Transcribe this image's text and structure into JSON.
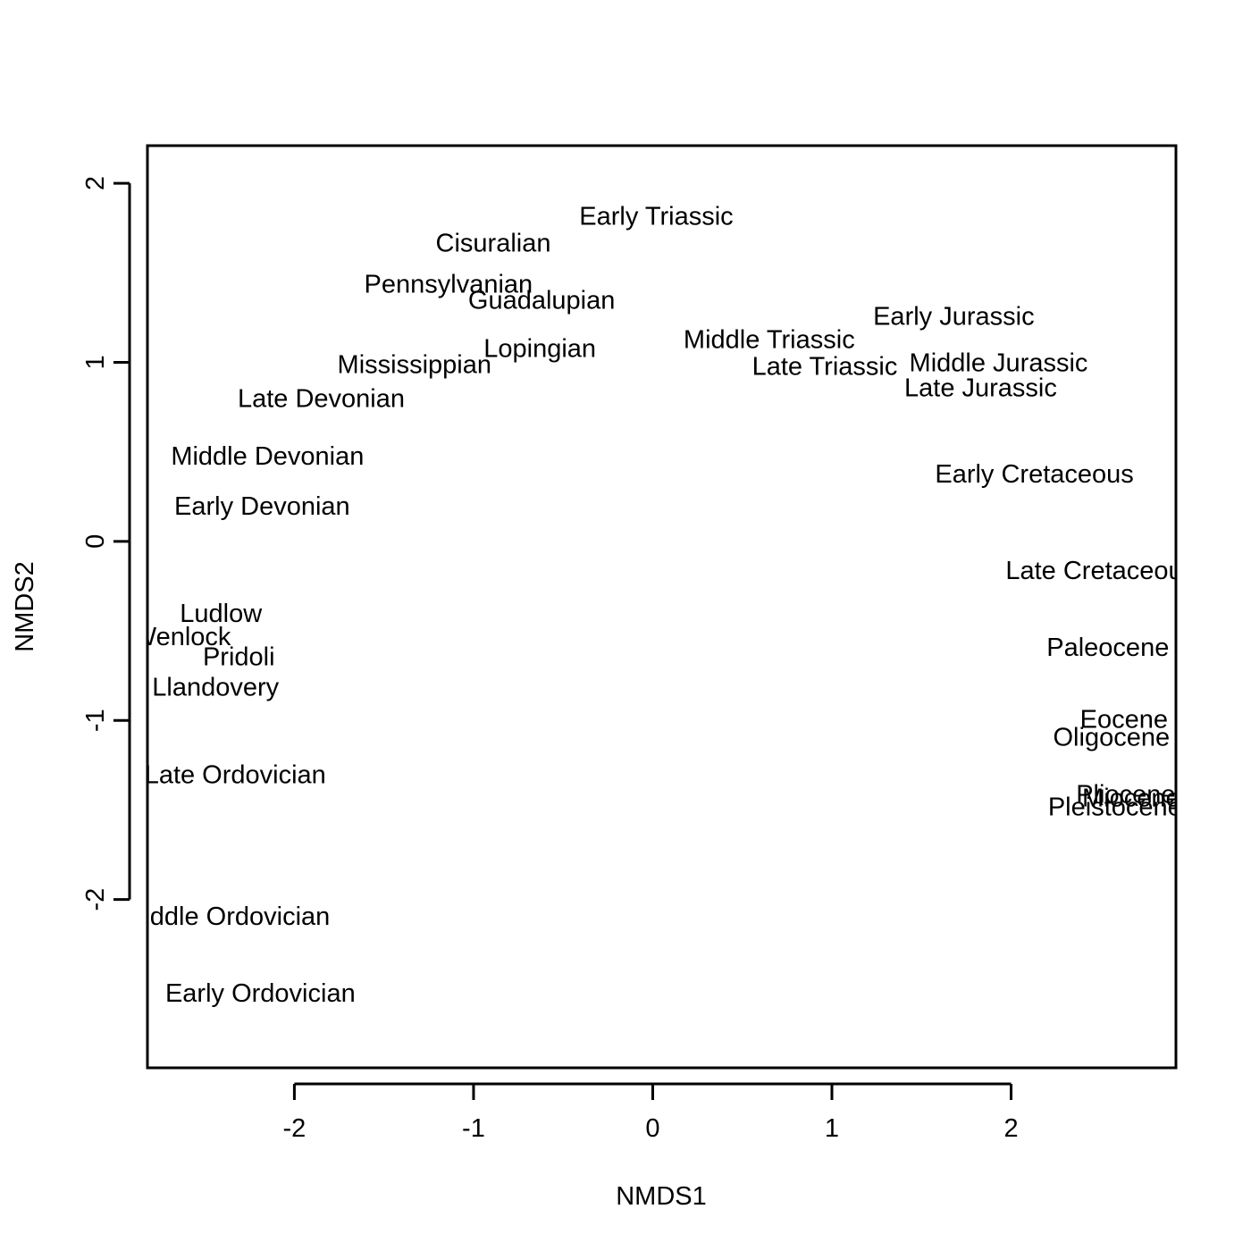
{
  "chart_data": {
    "type": "scatter",
    "title": "",
    "xlabel": "NMDS1",
    "ylabel": "NMDS2",
    "xlim": [
      -2.82,
      2.92
    ],
    "ylim": [
      -2.94,
      2.21
    ],
    "xticks": [
      -2,
      -1,
      0,
      1,
      2
    ],
    "yticks": [
      -2,
      -1,
      0,
      1,
      2
    ],
    "grid": false,
    "legend": "none",
    "marker": "text-label",
    "points": [
      {
        "label": "Early Triassic",
        "x": 0.02,
        "y": 1.82
      },
      {
        "label": "Cisuralian",
        "x": -0.89,
        "y": 1.67
      },
      {
        "label": "Pennsylvanian",
        "x": -1.14,
        "y": 1.44
      },
      {
        "label": "Guadalupian",
        "x": -0.62,
        "y": 1.35
      },
      {
        "label": "Early Jurassic",
        "x": 1.68,
        "y": 1.26
      },
      {
        "label": "Middle Triassic",
        "x": 0.65,
        "y": 1.13
      },
      {
        "label": "Lopingian",
        "x": -0.63,
        "y": 1.08
      },
      {
        "label": "Mississippian",
        "x": -1.33,
        "y": 0.99
      },
      {
        "label": "Late Triassic",
        "x": 0.96,
        "y": 0.98
      },
      {
        "label": "Middle Jurassic",
        "x": 1.93,
        "y": 1.0
      },
      {
        "label": "Late Jurassic",
        "x": 1.83,
        "y": 0.86
      },
      {
        "label": "Late Devonian",
        "x": -1.85,
        "y": 0.8
      },
      {
        "label": "Middle Devonian",
        "x": -2.15,
        "y": 0.48
      },
      {
        "label": "Early Cretaceous",
        "x": 2.13,
        "y": 0.38
      },
      {
        "label": "Early Devonian",
        "x": -2.18,
        "y": 0.2
      },
      {
        "label": "Late Cretaceous",
        "x": 2.5,
        "y": -0.16
      },
      {
        "label": "Ludlow",
        "x": -2.41,
        "y": -0.4
      },
      {
        "label": "Wenlock",
        "x": -2.63,
        "y": -0.53
      },
      {
        "label": "Pridoli",
        "x": -2.31,
        "y": -0.64
      },
      {
        "label": "Llandovery",
        "x": -2.44,
        "y": -0.81
      },
      {
        "label": "Late Ordovician",
        "x": -2.33,
        "y": -1.3
      },
      {
        "label": "Paleocene",
        "x": 2.54,
        "y": -0.59
      },
      {
        "label": "Eocene",
        "x": 2.63,
        "y": -0.99
      },
      {
        "label": "Oligocene",
        "x": 2.56,
        "y": -1.09
      },
      {
        "label": "Pliocene",
        "x": 2.64,
        "y": -1.41
      },
      {
        "label": "Miocene",
        "x": 2.67,
        "y": -1.43
      },
      {
        "label": "Pleistocene",
        "x": 2.58,
        "y": -1.48
      },
      {
        "label": "Middle Ordovician",
        "x": -2.38,
        "y": -2.09
      },
      {
        "label": "Early Ordovician",
        "x": -2.19,
        "y": -2.52
      }
    ]
  }
}
